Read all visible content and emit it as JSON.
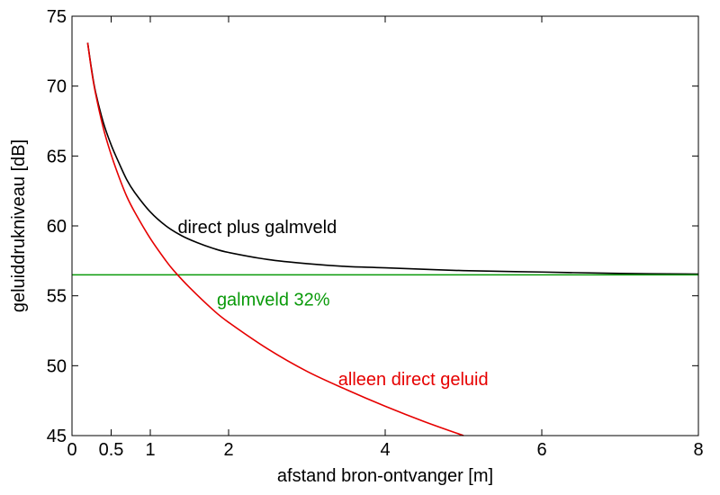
{
  "chart_data": {
    "type": "line",
    "xlabel": "afstand bron-ontvanger [m]",
    "ylabel": "geluiddrukniveau  [dB]",
    "xlim": [
      0,
      8
    ],
    "ylim": [
      45,
      75
    ],
    "xticks": [
      0,
      0.5,
      1,
      2,
      4,
      6,
      8
    ],
    "xtick_labels": [
      "0",
      "0.5",
      "1",
      "2",
      "4",
      "6",
      "8"
    ],
    "yticks": [
      45,
      50,
      55,
      60,
      65,
      70,
      75
    ],
    "ytick_labels": [
      "45",
      "50",
      "55",
      "60",
      "65",
      "70",
      "75"
    ],
    "grid": false,
    "series": [
      {
        "name": "direct plus galmveld",
        "color": "#000000",
        "x": [
          0.2,
          0.25,
          0.3,
          0.4,
          0.5,
          0.6,
          0.7,
          0.8,
          1.0,
          1.2,
          1.4,
          1.6,
          1.8,
          2.0,
          2.5,
          3.0,
          3.5,
          4.0,
          5.0,
          6.0,
          7.0,
          8.0
        ],
        "values": [
          73.1,
          71.2,
          69.6,
          67.4,
          65.8,
          64.5,
          63.3,
          62.4,
          61.0,
          60.0,
          59.3,
          58.8,
          58.4,
          58.1,
          57.6,
          57.3,
          57.1,
          57.0,
          56.8,
          56.7,
          56.6,
          56.55
        ]
      },
      {
        "name": "galmveld 32%",
        "color": "#0a9a0a",
        "x": [
          0,
          8
        ],
        "values": [
          56.5,
          56.5
        ]
      },
      {
        "name": "alleen direct geluid",
        "color": "#e60000",
        "x": [
          0.2,
          0.25,
          0.3,
          0.4,
          0.5,
          0.6,
          0.7,
          0.8,
          1.0,
          1.2,
          1.3,
          1.5,
          1.8,
          2.0,
          2.5,
          3.0,
          3.5,
          4.0,
          4.5,
          5.0
        ],
        "values": [
          73.1,
          71.1,
          69.5,
          67.0,
          65.1,
          63.5,
          62.1,
          61.0,
          59.1,
          57.5,
          56.8,
          55.6,
          54.0,
          53.1,
          51.2,
          49.6,
          48.3,
          47.1,
          46.0,
          45.0
        ]
      }
    ],
    "annotations": [
      {
        "text": "direct plus galmveld",
        "color": "#000000",
        "x": 1.35,
        "y": 59.5
      },
      {
        "text": "galmveld 32%",
        "color": "#0a9a0a",
        "x": 1.85,
        "y": 54.3
      },
      {
        "text": "alleen direct geluid",
        "color": "#e60000",
        "x": 3.4,
        "y": 48.6
      }
    ]
  }
}
